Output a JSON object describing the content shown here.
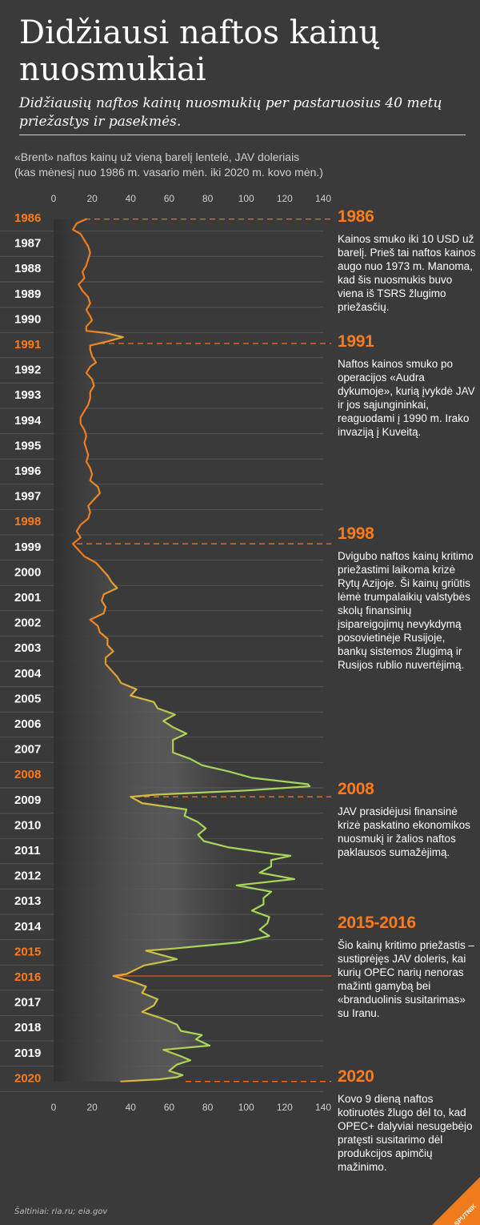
{
  "header": {
    "title": "Didžiausi naftos kainų nuosmukiai",
    "subtitle": "Didžiausių naftos kainų nuosmukių per pastaruosius 40 metų priežastys ir pasekmės.",
    "chart_caption_line1": "«Brent» naftos kainų už vieną barelį lentelė, JAV doleriais",
    "chart_caption_line2": "(kas mėnesį nuo 1986 m. vasario mėn. iki 2020 m. kovo mėn.)"
  },
  "chart_data": {
    "type": "line",
    "orientation": "vertical-time",
    "xlim": [
      0,
      140
    ],
    "xticks": [
      "0",
      "20",
      "40",
      "60",
      "80",
      "100",
      "120",
      "140"
    ],
    "years": [
      "1986",
      "1987",
      "1988",
      "1989",
      "1990",
      "1991",
      "1992",
      "1993",
      "1994",
      "1995",
      "1996",
      "1997",
      "1998",
      "1999",
      "2000",
      "2001",
      "2002",
      "2003",
      "2004",
      "2005",
      "2006",
      "2007",
      "2008",
      "2009",
      "2010",
      "2011",
      "2012",
      "2013",
      "2014",
      "2015",
      "2016",
      "2017",
      "2018",
      "2019",
      "2020"
    ],
    "highlight_years": [
      "1986",
      "1991",
      "1998",
      "2008",
      "2015",
      "2016",
      "2020"
    ],
    "colors": {
      "low": "#f07b1c",
      "mid": "#e0b53a",
      "high": "#a6d75b",
      "highlight_year": "#ff7a1a",
      "year": "#ffffff",
      "grid": "#555555",
      "dash": "#ff6a1a"
    },
    "points": [
      [
        "1986-02",
        17
      ],
      [
        "1986-04",
        12
      ],
      [
        "1986-07",
        10
      ],
      [
        "1986-09",
        14
      ],
      [
        "1986-12",
        16
      ],
      [
        "1987-03",
        18
      ],
      [
        "1987-06",
        19
      ],
      [
        "1987-09",
        18
      ],
      [
        "1987-12",
        17
      ],
      [
        "1988-03",
        15
      ],
      [
        "1988-06",
        16
      ],
      [
        "1988-09",
        13
      ],
      [
        "1988-12",
        15
      ],
      [
        "1989-03",
        18
      ],
      [
        "1989-06",
        19
      ],
      [
        "1989-09",
        17
      ],
      [
        "1989-12",
        19
      ],
      [
        "1990-02",
        20
      ],
      [
        "1990-05",
        17
      ],
      [
        "1990-07",
        17
      ],
      [
        "1990-08",
        27
      ],
      [
        "1990-10",
        36
      ],
      [
        "1990-12",
        28
      ],
      [
        "1991-02",
        19
      ],
      [
        "1991-04",
        19
      ],
      [
        "1991-07",
        20
      ],
      [
        "1991-10",
        22
      ],
      [
        "1991-12",
        19
      ],
      [
        "1992-03",
        17
      ],
      [
        "1992-06",
        20
      ],
      [
        "1992-09",
        21
      ],
      [
        "1992-12",
        19
      ],
      [
        "1993-03",
        19
      ],
      [
        "1993-06",
        18
      ],
      [
        "1993-09",
        16
      ],
      [
        "1993-12",
        14
      ],
      [
        "1994-03",
        14
      ],
      [
        "1994-06",
        16
      ],
      [
        "1994-09",
        17
      ],
      [
        "1994-12",
        16
      ],
      [
        "1995-03",
        17
      ],
      [
        "1995-06",
        18
      ],
      [
        "1995-09",
        17
      ],
      [
        "1995-12",
        19
      ],
      [
        "1996-03",
        20
      ],
      [
        "1996-06",
        19
      ],
      [
        "1996-09",
        23
      ],
      [
        "1996-12",
        24
      ],
      [
        "1997-03",
        21
      ],
      [
        "1997-06",
        18
      ],
      [
        "1997-09",
        19
      ],
      [
        "1997-12",
        18
      ],
      [
        "1998-03",
        14
      ],
      [
        "1998-06",
        12
      ],
      [
        "1998-09",
        14
      ],
      [
        "1998-12",
        10
      ],
      [
        "1999-03",
        13
      ],
      [
        "1999-06",
        16
      ],
      [
        "1999-09",
        22
      ],
      [
        "1999-12",
        25
      ],
      [
        "2000-03",
        28
      ],
      [
        "2000-06",
        30
      ],
      [
        "2000-09",
        33
      ],
      [
        "2000-12",
        26
      ],
      [
        "2001-03",
        25
      ],
      [
        "2001-06",
        27
      ],
      [
        "2001-09",
        26
      ],
      [
        "2001-12",
        19
      ],
      [
        "2002-03",
        23
      ],
      [
        "2002-06",
        24
      ],
      [
        "2002-09",
        28
      ],
      [
        "2002-12",
        28
      ],
      [
        "2003-03",
        31
      ],
      [
        "2003-06",
        27
      ],
      [
        "2003-09",
        27
      ],
      [
        "2003-12",
        30
      ],
      [
        "2004-03",
        33
      ],
      [
        "2004-06",
        35
      ],
      [
        "2004-09",
        43
      ],
      [
        "2004-12",
        40
      ],
      [
        "2005-03",
        52
      ],
      [
        "2005-06",
        54
      ],
      [
        "2005-09",
        63
      ],
      [
        "2005-12",
        57
      ],
      [
        "2006-03",
        62
      ],
      [
        "2006-06",
        69
      ],
      [
        "2006-09",
        62
      ],
      [
        "2006-12",
        62
      ],
      [
        "2007-03",
        62
      ],
      [
        "2007-06",
        71
      ],
      [
        "2007-09",
        77
      ],
      [
        "2007-12",
        91
      ],
      [
        "2008-03",
        103
      ],
      [
        "2008-06",
        132
      ],
      [
        "2008-07",
        133
      ],
      [
        "2008-09",
        100
      ],
      [
        "2008-11",
        53
      ],
      [
        "2008-12",
        40
      ],
      [
        "2009-03",
        46
      ],
      [
        "2009-06",
        69
      ],
      [
        "2009-09",
        68
      ],
      [
        "2009-12",
        75
      ],
      [
        "2010-03",
        79
      ],
      [
        "2010-06",
        75
      ],
      [
        "2010-09",
        78
      ],
      [
        "2010-12",
        91
      ],
      [
        "2011-03",
        114
      ],
      [
        "2011-04",
        123
      ],
      [
        "2011-06",
        113
      ],
      [
        "2011-09",
        113
      ],
      [
        "2011-12",
        107
      ],
      [
        "2012-03",
        125
      ],
      [
        "2012-06",
        95
      ],
      [
        "2012-09",
        113
      ],
      [
        "2012-12",
        109
      ],
      [
        "2013-03",
        109
      ],
      [
        "2013-06",
        103
      ],
      [
        "2013-09",
        112
      ],
      [
        "2013-12",
        111
      ],
      [
        "2014-03",
        107
      ],
      [
        "2014-06",
        112
      ],
      [
        "2014-09",
        97
      ],
      [
        "2014-12",
        62
      ],
      [
        "2015-01",
        48
      ],
      [
        "2015-03",
        56
      ],
      [
        "2015-05",
        64
      ],
      [
        "2015-08",
        47
      ],
      [
        "2015-12",
        38
      ],
      [
        "2016-01",
        31
      ],
      [
        "2016-04",
        42
      ],
      [
        "2016-06",
        48
      ],
      [
        "2016-09",
        46
      ],
      [
        "2016-12",
        54
      ],
      [
        "2017-03",
        52
      ],
      [
        "2017-06",
        46
      ],
      [
        "2017-09",
        56
      ],
      [
        "2017-12",
        64
      ],
      [
        "2018-03",
        66
      ],
      [
        "2018-05",
        77
      ],
      [
        "2018-07",
        74
      ],
      [
        "2018-10",
        81
      ],
      [
        "2018-12",
        57
      ],
      [
        "2019-03",
        66
      ],
      [
        "2019-05",
        71
      ],
      [
        "2019-07",
        64
      ],
      [
        "2019-10",
        60
      ],
      [
        "2019-12",
        67
      ],
      [
        "2020-01",
        64
      ],
      [
        "2020-02",
        55
      ],
      [
        "2020-03",
        35
      ]
    ]
  },
  "annotations": [
    {
      "year": "1986",
      "text": "Kainos smuko iki 10 USD už barelį. Prieš tai naftos kainos augo nuo 1973 m. Manoma, kad šis nuosmukis buvo viena iš TSRS žlugimo priežasčių."
    },
    {
      "year": "1991",
      "text": "Naftos kainos smuko po operacijos «Audra dykumoje», kurią įvykdė JAV ir jos sąjungininkai, reaguodami į 1990 m. Irako invaziją į Kuveitą."
    },
    {
      "year": "1998",
      "text": "Dvigubo naftos kainų kritimo priežastimi laikoma krizė Rytų Azijoje. Ši kainų griūtis lėmė trumpalaikių valstybės skolų finansinių įsipareigojimų nevykdymą posovietinėje Rusijoje, bankų sistemos žlugimą ir Rusijos rublio nuvertėjimą."
    },
    {
      "year": "2008",
      "text": "JAV prasidėjusi finansinė krizė paskatino ekonomikos nuosmukį ir žalios naftos paklausos sumažėjimą."
    },
    {
      "year": "2015-2016",
      "text": "Šio kainų kritimo priežastis – sustiprėjęs JAV doleris, kai kurių OPEC narių nenoras mažinti gamybą bei «branduolinis susitarimas» su Iranu."
    },
    {
      "year": "2020",
      "text": "Kovo 9 dieną naftos kotiruotės žlugo dėl to, kad OPEC+ dalyviai nesugebėjo pratęsti susitarimo dėl produkcijos apimčių mažinimo."
    }
  ],
  "footer": {
    "source": "Šaltiniai: ria.ru; eia.gov",
    "logo_text": "SPUTNIK"
  }
}
